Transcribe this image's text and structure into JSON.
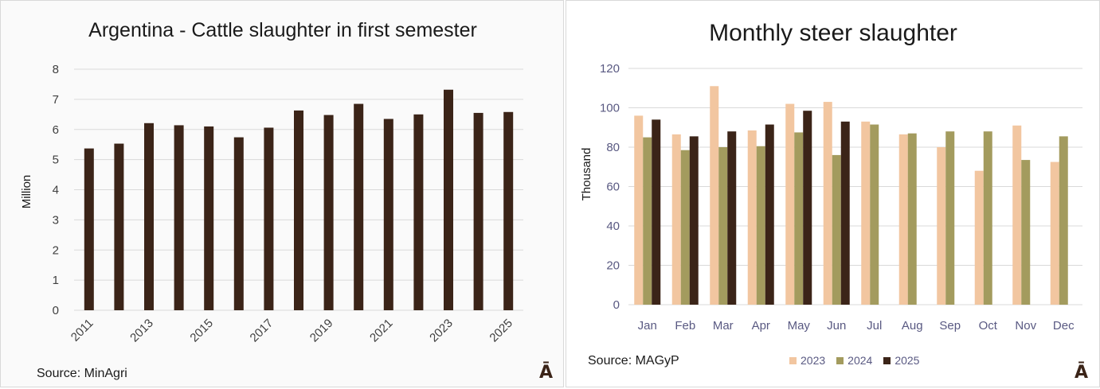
{
  "colors": {
    "left_bar": "#3b2418",
    "s2023": "#f2c6a0",
    "s2024": "#a39b5e",
    "s2025": "#3b2418",
    "grid": "#d9d9d9"
  },
  "left": {
    "source": "Source: MinAgri",
    "logo": "Ā"
  },
  "right": {
    "source": "Source: MAGyP",
    "logo": "Ā"
  },
  "chart_data": [
    {
      "type": "bar",
      "title": "Argentina - Cattle slaughter in first semester",
      "ylabel": "Million",
      "xlabel": "",
      "ylim": [
        0,
        8
      ],
      "yticks": [
        0,
        1,
        2,
        3,
        4,
        5,
        6,
        7,
        8
      ],
      "grid": true,
      "categories": [
        "2011",
        "2012",
        "2013",
        "2014",
        "2015",
        "2016",
        "2017",
        "2018",
        "2019",
        "2020",
        "2021",
        "2022",
        "2023",
        "2024",
        "2025"
      ],
      "tick_labels_shown": [
        "2011",
        "2013",
        "2015",
        "2017",
        "2019",
        "2021",
        "2023",
        "2025"
      ],
      "values": [
        5.37,
        5.53,
        6.21,
        6.14,
        6.1,
        5.74,
        6.06,
        6.63,
        6.48,
        6.85,
        6.35,
        6.5,
        7.32,
        6.55,
        6.58
      ]
    },
    {
      "type": "bar",
      "title": "Monthly steer slaughter",
      "ylabel": "Thousand",
      "xlabel": "",
      "ylim": [
        0,
        120
      ],
      "yticks": [
        0,
        20,
        40,
        60,
        80,
        100,
        120
      ],
      "grid": true,
      "legend_position": "bottom",
      "categories": [
        "Jan",
        "Feb",
        "Mar",
        "Apr",
        "May",
        "Jun",
        "Jul",
        "Aug",
        "Sep",
        "Oct",
        "Nov",
        "Dec"
      ],
      "series": [
        {
          "name": "2023",
          "values": [
            96,
            86.5,
            111,
            88.5,
            102,
            103,
            93,
            86.5,
            80,
            68,
            91,
            72.5
          ]
        },
        {
          "name": "2024",
          "values": [
            85,
            78.5,
            80,
            80.5,
            87.5,
            76,
            91.5,
            87,
            88,
            88,
            73.5,
            85.5
          ]
        },
        {
          "name": "2025",
          "values": [
            94,
            85.5,
            88,
            91.5,
            98.5,
            93,
            null,
            null,
            null,
            null,
            null,
            null
          ]
        }
      ]
    }
  ]
}
